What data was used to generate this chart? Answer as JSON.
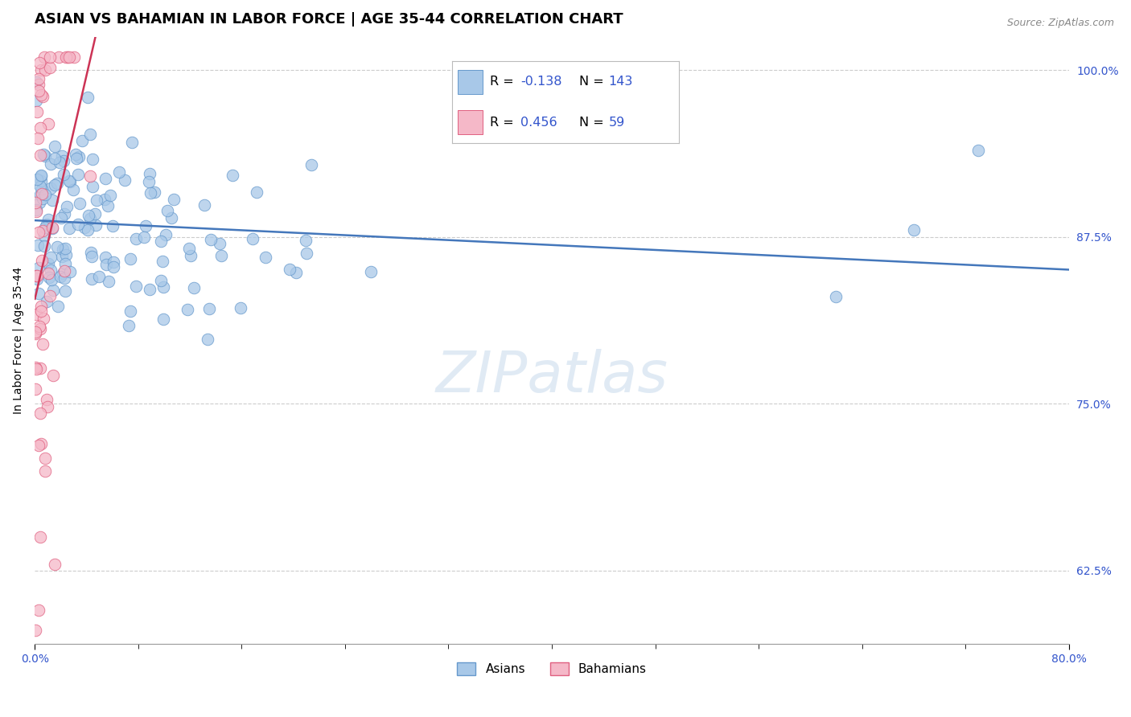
{
  "title": "ASIAN VS BAHAMIAN IN LABOR FORCE | AGE 35-44 CORRELATION CHART",
  "source": "Source: ZipAtlas.com",
  "ylabel": "In Labor Force | Age 35-44",
  "xlim": [
    0.0,
    80.0
  ],
  "ylim": [
    57.0,
    102.5
  ],
  "yticks": [
    62.5,
    75.0,
    87.5,
    100.0
  ],
  "ytick_labels": [
    "62.5%",
    "75.0%",
    "87.5%",
    "100.0%"
  ],
  "blue_color": "#a8c8e8",
  "blue_edge": "#6699cc",
  "pink_color": "#f5b8c8",
  "pink_edge": "#e06080",
  "blue_trend_color": "#4477bb",
  "pink_trend_color": "#cc3355",
  "legend_R_color": "#3355cc",
  "legend_N_color": "#3355cc",
  "grid_color": "#cccccc",
  "watermark": "ZIPatlas",
  "bg_color": "#ffffff",
  "title_fontsize": 13,
  "source_fontsize": 9,
  "axis_label_fontsize": 10,
  "tick_fontsize": 10
}
